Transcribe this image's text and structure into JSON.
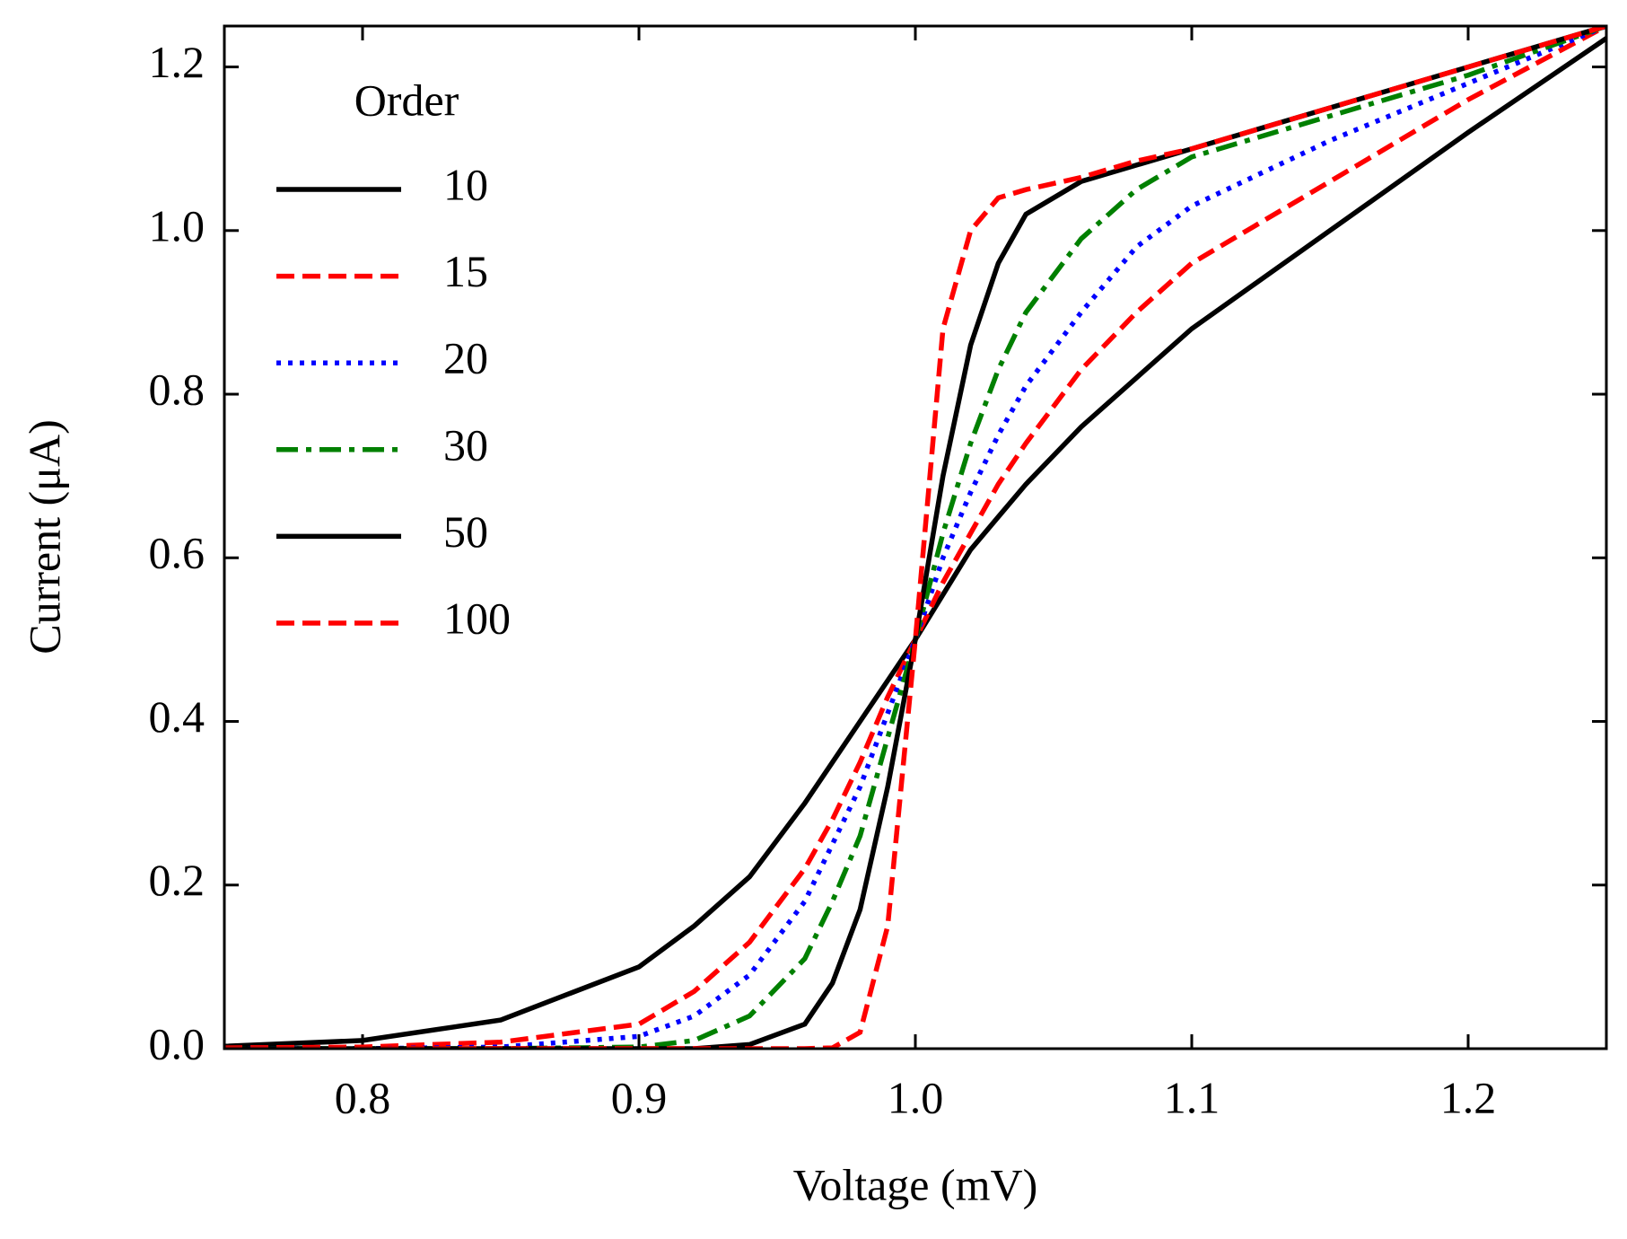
{
  "chart_data": {
    "type": "line",
    "xlabel": "Voltage (mV)",
    "ylabel": "Current (μA)",
    "legend_title": "Order",
    "legend": "upper left",
    "x": [
      0.75,
      0.8,
      0.85,
      0.9,
      0.92,
      0.94,
      0.96,
      0.97,
      0.98,
      0.99,
      1.0,
      1.01,
      1.02,
      1.03,
      1.04,
      1.06,
      1.08,
      1.1,
      1.15,
      1.2,
      1.25
    ],
    "series": [
      {
        "name": "10",
        "color": "#000000",
        "linestyle": "solid",
        "values": [
          0.003,
          0.01,
          0.035,
          0.1,
          0.15,
          0.21,
          0.3,
          0.35,
          0.4,
          0.45,
          0.5,
          0.555,
          0.61,
          0.65,
          0.69,
          0.76,
          0.82,
          0.88,
          1.0,
          1.12,
          1.235
        ]
      },
      {
        "name": "15",
        "color": "#ff0000",
        "linestyle": "dashed",
        "values": [
          0.001,
          0.002,
          0.008,
          0.03,
          0.07,
          0.13,
          0.22,
          0.28,
          0.35,
          0.43,
          0.5,
          0.57,
          0.63,
          0.69,
          0.74,
          0.83,
          0.9,
          0.96,
          1.06,
          1.16,
          1.25
        ]
      },
      {
        "name": "20",
        "color": "#0000ff",
        "linestyle": "dotted",
        "values": [
          0,
          0,
          0.002,
          0.015,
          0.04,
          0.09,
          0.18,
          0.25,
          0.32,
          0.41,
          0.5,
          0.6,
          0.68,
          0.75,
          0.81,
          0.9,
          0.98,
          1.03,
          1.11,
          1.18,
          1.25
        ]
      },
      {
        "name": "30",
        "color": "#008000",
        "linestyle": "dashdot",
        "values": [
          0,
          0,
          0,
          0.002,
          0.01,
          0.04,
          0.11,
          0.18,
          0.26,
          0.38,
          0.5,
          0.63,
          0.74,
          0.83,
          0.9,
          0.99,
          1.05,
          1.09,
          1.14,
          1.19,
          1.25
        ]
      },
      {
        "name": "50",
        "color": "#000000",
        "linestyle": "solid",
        "values": [
          0,
          0,
          0,
          0,
          0,
          0.005,
          0.03,
          0.08,
          0.17,
          0.32,
          0.5,
          0.7,
          0.86,
          0.96,
          1.02,
          1.06,
          1.08,
          1.1,
          1.15,
          1.2,
          1.25
        ]
      },
      {
        "name": "100",
        "color": "#ff0000",
        "linestyle": "dashed",
        "values": [
          0,
          0,
          0,
          0,
          0,
          0,
          0,
          0.001,
          0.02,
          0.15,
          0.5,
          0.88,
          1.0,
          1.04,
          1.05,
          1.065,
          1.085,
          1.1,
          1.15,
          1.2,
          1.25
        ]
      }
    ],
    "xlim": [
      0.75,
      1.25
    ],
    "xticks": [
      0.8,
      0.9,
      {
        "value": 1.0,
        "label": "1.0"
      },
      1.1,
      1.2
    ],
    "ylim": [
      0,
      1.25
    ],
    "yticks": [
      {
        "value": 0,
        "label": "0.0"
      },
      0.2,
      0.4,
      0.6,
      0.8,
      {
        "value": 1.0,
        "label": "1.0"
      },
      1.2
    ],
    "grid": false
  }
}
